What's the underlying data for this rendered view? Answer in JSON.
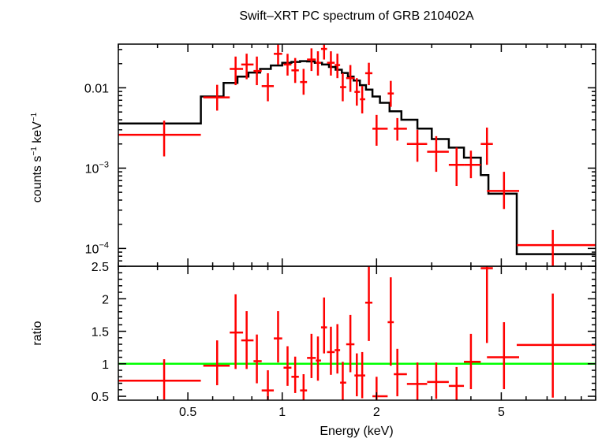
{
  "chart_data": {
    "type": "scatter",
    "title": "Swift–XRT PC spectrum of GRB 210402A",
    "xlabel": "Energy (keV)",
    "x_scale": "log",
    "xlim": [
      0.3,
      10
    ],
    "x_ticks": [
      {
        "value": 0.5,
        "label": "0.5"
      },
      {
        "value": 1,
        "label": "1"
      },
      {
        "value": 2,
        "label": "2"
      },
      {
        "value": 5,
        "label": "5"
      }
    ],
    "colors": {
      "data": "#ff0000",
      "model": "#000000",
      "unity": "#00ff00"
    },
    "panels": [
      {
        "id": "spectrum",
        "ylabel_main": "counts s",
        "ylabel_sup1": "−1",
        "ylabel_mid": " keV",
        "ylabel_sup2": "−1",
        "y_scale": "log",
        "ylim": [
          6e-05,
          0.035
        ],
        "y_ticks": [
          {
            "value": 0.01,
            "base": "0.01",
            "exp": ""
          },
          {
            "value": 0.001,
            "base": "10",
            "exp": "−3"
          },
          {
            "value": 0.0001,
            "base": "10",
            "exp": "−4"
          }
        ],
        "data": [
          {
            "x": 0.42,
            "xlo": 0.3,
            "xhi": 0.55,
            "y": 0.0026,
            "ylo": 0.0014,
            "yhi": 0.0039
          },
          {
            "x": 0.62,
            "xlo": 0.56,
            "xhi": 0.68,
            "y": 0.0076,
            "ylo": 0.0052,
            "yhi": 0.0109
          },
          {
            "x": 0.71,
            "xlo": 0.68,
            "xhi": 0.75,
            "y": 0.0172,
            "ylo": 0.0108,
            "yhi": 0.0245
          },
          {
            "x": 0.77,
            "xlo": 0.74,
            "xhi": 0.81,
            "y": 0.0195,
            "ylo": 0.0128,
            "yhi": 0.0266
          },
          {
            "x": 0.83,
            "xlo": 0.81,
            "xhi": 0.86,
            "y": 0.0162,
            "ylo": 0.0108,
            "yhi": 0.0245
          },
          {
            "x": 0.9,
            "xlo": 0.86,
            "xhi": 0.94,
            "y": 0.0105,
            "ylo": 0.0068,
            "yhi": 0.0152
          },
          {
            "x": 0.97,
            "xlo": 0.94,
            "xhi": 1.0,
            "y": 0.0265,
            "ylo": 0.0195,
            "yhi": 0.0345
          },
          {
            "x": 1.04,
            "xlo": 1.01,
            "xhi": 1.07,
            "y": 0.0195,
            "ylo": 0.0142,
            "yhi": 0.0265
          },
          {
            "x": 1.1,
            "xlo": 1.07,
            "xhi": 1.13,
            "y": 0.0165,
            "ylo": 0.0115,
            "yhi": 0.0235
          },
          {
            "x": 1.17,
            "xlo": 1.14,
            "xhi": 1.2,
            "y": 0.0118,
            "ylo": 0.0082,
            "yhi": 0.0172
          },
          {
            "x": 1.24,
            "xlo": 1.2,
            "xhi": 1.28,
            "y": 0.0225,
            "ylo": 0.0162,
            "yhi": 0.031
          },
          {
            "x": 1.3,
            "xlo": 1.28,
            "xhi": 1.33,
            "y": 0.0205,
            "ylo": 0.0142,
            "yhi": 0.0285
          },
          {
            "x": 1.36,
            "xlo": 1.33,
            "xhi": 1.39,
            "y": 0.0305,
            "ylo": 0.0225,
            "yhi": 0.0345
          },
          {
            "x": 1.43,
            "xlo": 1.39,
            "xhi": 1.47,
            "y": 0.0205,
            "ylo": 0.0142,
            "yhi": 0.0285
          },
          {
            "x": 1.5,
            "xlo": 1.47,
            "xhi": 1.53,
            "y": 0.0192,
            "ylo": 0.0132,
            "yhi": 0.0266
          },
          {
            "x": 1.56,
            "xlo": 1.53,
            "xhi": 1.6,
            "y": 0.0102,
            "ylo": 0.0068,
            "yhi": 0.0152
          },
          {
            "x": 1.65,
            "xlo": 1.6,
            "xhi": 1.7,
            "y": 0.0132,
            "ylo": 0.0089,
            "yhi": 0.0192
          },
          {
            "x": 1.73,
            "xlo": 1.7,
            "xhi": 1.77,
            "y": 0.0089,
            "ylo": 0.006,
            "yhi": 0.0132
          },
          {
            "x": 1.8,
            "xlo": 1.77,
            "xhi": 1.84,
            "y": 0.0072,
            "ylo": 0.0048,
            "yhi": 0.0105
          },
          {
            "x": 1.89,
            "xlo": 1.84,
            "xhi": 1.94,
            "y": 0.0152,
            "ylo": 0.0108,
            "yhi": 0.0205
          },
          {
            "x": 2.0,
            "xlo": 1.94,
            "xhi": 2.17,
            "y": 0.0031,
            "ylo": 0.0019,
            "yhi": 0.0046
          },
          {
            "x": 2.22,
            "xlo": 2.17,
            "xhi": 2.27,
            "y": 0.0085,
            "ylo": 0.0058,
            "yhi": 0.0122
          },
          {
            "x": 2.33,
            "xlo": 2.27,
            "xhi": 2.5,
            "y": 0.0031,
            "ylo": 0.0022,
            "yhi": 0.0042
          },
          {
            "x": 2.7,
            "xlo": 2.5,
            "xhi": 2.9,
            "y": 0.002,
            "ylo": 0.0012,
            "yhi": 0.003
          },
          {
            "x": 3.1,
            "xlo": 2.9,
            "xhi": 3.4,
            "y": 0.0016,
            "ylo": 0.0009,
            "yhi": 0.0025
          },
          {
            "x": 3.6,
            "xlo": 3.4,
            "xhi": 3.8,
            "y": 0.0011,
            "ylo": 0.0006,
            "yhi": 0.0018
          },
          {
            "x": 4.0,
            "xlo": 3.8,
            "xhi": 4.3,
            "y": 0.0011,
            "ylo": 0.00075,
            "yhi": 0.00165
          },
          {
            "x": 4.5,
            "xlo": 4.3,
            "xhi": 4.7,
            "y": 0.002,
            "ylo": 0.0011,
            "yhi": 0.0032
          },
          {
            "x": 5.1,
            "xlo": 4.5,
            "xhi": 5.7,
            "y": 0.00052,
            "ylo": 0.00031,
            "yhi": 0.0009
          },
          {
            "x": 7.3,
            "xlo": 5.6,
            "xhi": 10,
            "y": 0.00011,
            "ylo": 6e-05,
            "yhi": 0.00017
          }
        ],
        "model": [
          {
            "xlo": 0.3,
            "xhi": 0.55,
            "y": 0.0036
          },
          {
            "xlo": 0.55,
            "xhi": 0.65,
            "y": 0.0078
          },
          {
            "xlo": 0.65,
            "xhi": 0.72,
            "y": 0.0115
          },
          {
            "xlo": 0.72,
            "xhi": 0.78,
            "y": 0.0138
          },
          {
            "xlo": 0.78,
            "xhi": 0.85,
            "y": 0.0155
          },
          {
            "xlo": 0.85,
            "xhi": 0.92,
            "y": 0.0172
          },
          {
            "xlo": 0.92,
            "xhi": 1.0,
            "y": 0.019
          },
          {
            "xlo": 1.0,
            "xhi": 1.07,
            "y": 0.0205
          },
          {
            "xlo": 1.07,
            "xhi": 1.14,
            "y": 0.021
          },
          {
            "xlo": 1.14,
            "xhi": 1.2,
            "y": 0.0215
          },
          {
            "xlo": 1.2,
            "xhi": 1.27,
            "y": 0.0213
          },
          {
            "xlo": 1.27,
            "xhi": 1.34,
            "y": 0.0205
          },
          {
            "xlo": 1.34,
            "xhi": 1.41,
            "y": 0.0195
          },
          {
            "xlo": 1.41,
            "xhi": 1.48,
            "y": 0.0182
          },
          {
            "xlo": 1.48,
            "xhi": 1.55,
            "y": 0.0168
          },
          {
            "xlo": 1.55,
            "xhi": 1.62,
            "y": 0.0153
          },
          {
            "xlo": 1.62,
            "xhi": 1.69,
            "y": 0.0138
          },
          {
            "xlo": 1.69,
            "xhi": 1.77,
            "y": 0.0123
          },
          {
            "xlo": 1.77,
            "xhi": 1.85,
            "y": 0.0108
          },
          {
            "xlo": 1.85,
            "xhi": 1.94,
            "y": 0.0095
          },
          {
            "xlo": 1.94,
            "xhi": 2.05,
            "y": 0.0078
          },
          {
            "xlo": 2.05,
            "xhi": 2.2,
            "y": 0.0065
          },
          {
            "xlo": 2.2,
            "xhi": 2.4,
            "y": 0.0051
          },
          {
            "xlo": 2.4,
            "xhi": 2.7,
            "y": 0.004
          },
          {
            "xlo": 2.7,
            "xhi": 3.0,
            "y": 0.0031
          },
          {
            "xlo": 3.0,
            "xhi": 3.4,
            "y": 0.0023
          },
          {
            "xlo": 3.4,
            "xhi": 3.8,
            "y": 0.0018
          },
          {
            "xlo": 3.8,
            "xhi": 4.3,
            "y": 0.00135
          },
          {
            "xlo": 4.3,
            "xhi": 4.55,
            "y": 0.00082
          },
          {
            "xlo": 4.55,
            "xhi": 5.6,
            "y": 0.00048
          },
          {
            "xlo": 5.6,
            "xhi": 10,
            "y": 8.5e-05
          }
        ]
      },
      {
        "id": "ratio",
        "ylabel": "ratio",
        "y_scale": "linear",
        "ylim": [
          0.44,
          2.5
        ],
        "y_ticks": [
          {
            "value": 0.5,
            "label": "0.5"
          },
          {
            "value": 1,
            "label": "1"
          },
          {
            "value": 1.5,
            "label": "1.5"
          },
          {
            "value": 2,
            "label": "2"
          },
          {
            "value": 2.5,
            "label": "2.5"
          }
        ],
        "reference": 1.0,
        "data": [
          {
            "x": 0.42,
            "xlo": 0.3,
            "xhi": 0.55,
            "y": 0.74,
            "ylo": 0.45,
            "yhi": 1.07
          },
          {
            "x": 0.62,
            "xlo": 0.56,
            "xhi": 0.68,
            "y": 0.97,
            "ylo": 0.67,
            "yhi": 1.36
          },
          {
            "x": 0.71,
            "xlo": 0.68,
            "xhi": 0.75,
            "y": 1.48,
            "ylo": 0.92,
            "yhi": 2.07
          },
          {
            "x": 0.77,
            "xlo": 0.74,
            "xhi": 0.81,
            "y": 1.36,
            "ylo": 0.92,
            "yhi": 1.81
          },
          {
            "x": 0.83,
            "xlo": 0.81,
            "xhi": 0.86,
            "y": 1.04,
            "ylo": 0.7,
            "yhi": 1.45
          },
          {
            "x": 0.9,
            "xlo": 0.86,
            "xhi": 0.94,
            "y": 0.59,
            "ylo": 0.44,
            "yhi": 0.9
          },
          {
            "x": 0.97,
            "xlo": 0.94,
            "xhi": 1.0,
            "y": 1.39,
            "ylo": 1.02,
            "yhi": 1.81
          },
          {
            "x": 1.04,
            "xlo": 1.01,
            "xhi": 1.07,
            "y": 0.94,
            "ylo": 0.66,
            "yhi": 1.27
          },
          {
            "x": 1.1,
            "xlo": 1.07,
            "xhi": 1.13,
            "y": 0.8,
            "ylo": 0.55,
            "yhi": 1.11
          },
          {
            "x": 1.17,
            "xlo": 1.14,
            "xhi": 1.2,
            "y": 0.59,
            "ylo": 0.44,
            "yhi": 0.84
          },
          {
            "x": 1.24,
            "xlo": 1.2,
            "xhi": 1.28,
            "y": 1.09,
            "ylo": 0.78,
            "yhi": 1.46
          },
          {
            "x": 1.3,
            "xlo": 1.28,
            "xhi": 1.33,
            "y": 1.05,
            "ylo": 0.74,
            "yhi": 1.42
          },
          {
            "x": 1.36,
            "xlo": 1.33,
            "xhi": 1.39,
            "y": 1.56,
            "ylo": 1.16,
            "yhi": 2.02
          },
          {
            "x": 1.43,
            "xlo": 1.39,
            "xhi": 1.47,
            "y": 1.18,
            "ylo": 0.83,
            "yhi": 1.57
          },
          {
            "x": 1.5,
            "xlo": 1.47,
            "xhi": 1.53,
            "y": 1.21,
            "ylo": 0.85,
            "yhi": 1.61
          },
          {
            "x": 1.56,
            "xlo": 1.53,
            "xhi": 1.6,
            "y": 0.71,
            "ylo": 0.44,
            "yhi": 1.03
          },
          {
            "x": 1.65,
            "xlo": 1.6,
            "xhi": 1.7,
            "y": 1.3,
            "ylo": 0.87,
            "yhi": 1.75
          },
          {
            "x": 1.73,
            "xlo": 1.7,
            "xhi": 1.77,
            "y": 0.82,
            "ylo": 0.5,
            "yhi": 1.16
          },
          {
            "x": 1.8,
            "xlo": 1.77,
            "xhi": 1.84,
            "y": 0.82,
            "ylo": 0.47,
            "yhi": 1.18
          },
          {
            "x": 1.89,
            "xlo": 1.84,
            "xhi": 1.94,
            "y": 1.94,
            "ylo": 1.35,
            "yhi": 2.5
          },
          {
            "x": 2.0,
            "xlo": 1.94,
            "xhi": 2.17,
            "y": 0.5,
            "ylo": 0.44,
            "yhi": 0.8
          },
          {
            "x": 2.22,
            "xlo": 2.17,
            "xhi": 2.27,
            "y": 1.64,
            "ylo": 0.97,
            "yhi": 2.33
          },
          {
            "x": 2.33,
            "xlo": 2.27,
            "xhi": 2.5,
            "y": 0.84,
            "ylo": 0.5,
            "yhi": 1.23
          },
          {
            "x": 2.7,
            "xlo": 2.5,
            "xhi": 2.9,
            "y": 0.69,
            "ylo": 0.44,
            "yhi": 1.02
          },
          {
            "x": 3.1,
            "xlo": 2.9,
            "xhi": 3.4,
            "y": 0.72,
            "ylo": 0.46,
            "yhi": 1.02
          },
          {
            "x": 3.6,
            "xlo": 3.4,
            "xhi": 3.8,
            "y": 0.66,
            "ylo": 0.44,
            "yhi": 0.95
          },
          {
            "x": 4.0,
            "xlo": 3.8,
            "xhi": 4.3,
            "y": 1.03,
            "ylo": 0.61,
            "yhi": 1.46
          },
          {
            "x": 4.5,
            "xlo": 4.3,
            "xhi": 4.7,
            "y": 2.47,
            "ylo": 1.32,
            "yhi": 2.5
          },
          {
            "x": 5.1,
            "xlo": 4.5,
            "xhi": 5.7,
            "y": 1.1,
            "ylo": 0.61,
            "yhi": 1.64
          },
          {
            "x": 7.3,
            "xlo": 5.6,
            "xhi": 10,
            "y": 1.29,
            "ylo": 0.48,
            "yhi": 2.08
          }
        ]
      }
    ]
  }
}
